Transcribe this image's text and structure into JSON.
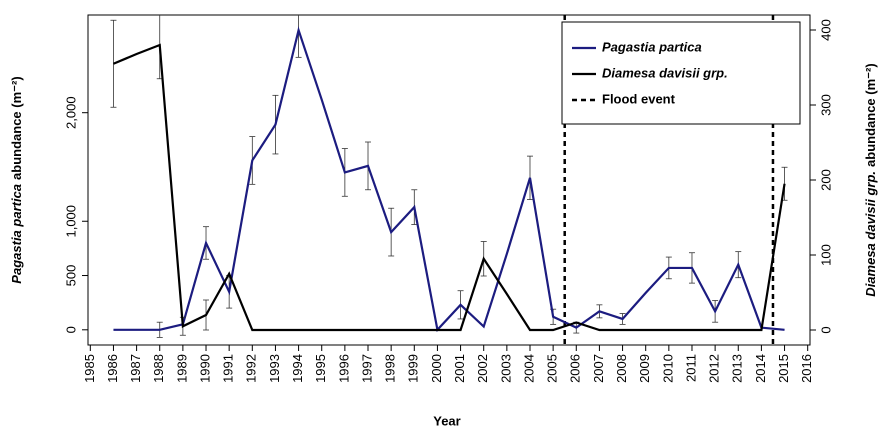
{
  "chart_data": {
    "type": "line",
    "xlabel": "Year",
    "ylabel": [
      "Pagastia partica",
      "abundance (m⁻²)"
    ],
    "y2label": [
      "Diamesa davisii grp.",
      "abundance (m⁻²)"
    ],
    "x": [
      1986,
      1987,
      1988,
      1989,
      1990,
      1991,
      1992,
      1993,
      1994,
      1995,
      1996,
      1997,
      1998,
      1999,
      2000,
      2001,
      2002,
      2003,
      2004,
      2005,
      2006,
      2007,
      2008,
      2009,
      2010,
      2011,
      2012,
      2013,
      2014,
      2015
    ],
    "series": [
      {
        "name": "Pagastia partica",
        "color": "#1c1c80",
        "axis": "y",
        "values": [
          0,
          0,
          0,
          50,
          800,
          350,
          1560,
          1890,
          2760,
          2120,
          1450,
          1510,
          900,
          1130,
          0,
          230,
          30,
          700,
          1400,
          120,
          20,
          170,
          100,
          340,
          570,
          570,
          170,
          600,
          20,
          0
        ],
        "errors": [
          null,
          null,
          70,
          null,
          150,
          150,
          220,
          270,
          250,
          null,
          220,
          220,
          220,
          160,
          null,
          130,
          null,
          null,
          200,
          70,
          50,
          60,
          50,
          null,
          100,
          140,
          100,
          120,
          null,
          null
        ]
      },
      {
        "name": "Diamesa davisii grp.",
        "color": "#000000",
        "axis": "y2",
        "values": [
          355,
          368,
          380,
          5,
          20,
          75,
          0,
          0,
          0,
          0,
          0,
          0,
          0,
          0,
          0,
          0,
          95,
          48,
          0,
          0,
          10,
          0,
          0,
          0,
          0,
          0,
          0,
          0,
          0,
          195
        ],
        "errors": [
          58,
          null,
          45,
          12,
          20,
          null,
          null,
          null,
          null,
          null,
          null,
          null,
          null,
          null,
          null,
          null,
          23,
          null,
          null,
          null,
          null,
          null,
          null,
          null,
          null,
          null,
          null,
          null,
          null,
          22
        ]
      }
    ],
    "flood_label": "Flood event",
    "flood_events": [
      2005.5,
      2014.5
    ],
    "xlim": [
      1984.9,
      2016.1
    ],
    "xticks": [
      1985,
      1986,
      1987,
      1988,
      1989,
      1990,
      1991,
      1992,
      1993,
      1994,
      1995,
      1996,
      1997,
      1998,
      1999,
      2000,
      2001,
      2002,
      2003,
      2004,
      2005,
      2006,
      2007,
      2008,
      2009,
      2010,
      2011,
      2012,
      2013,
      2014,
      2015,
      2016
    ],
    "ylim": [
      -140,
      2900
    ],
    "yticks": [
      0,
      500,
      {
        "value": 1000,
        "label": "1,000"
      },
      {
        "value": 2000,
        "label": "2,000"
      }
    ],
    "y2lim": [
      -20,
      420
    ],
    "y2ticks": [
      0,
      100,
      200,
      300,
      400
    ],
    "legend": "top-right"
  }
}
